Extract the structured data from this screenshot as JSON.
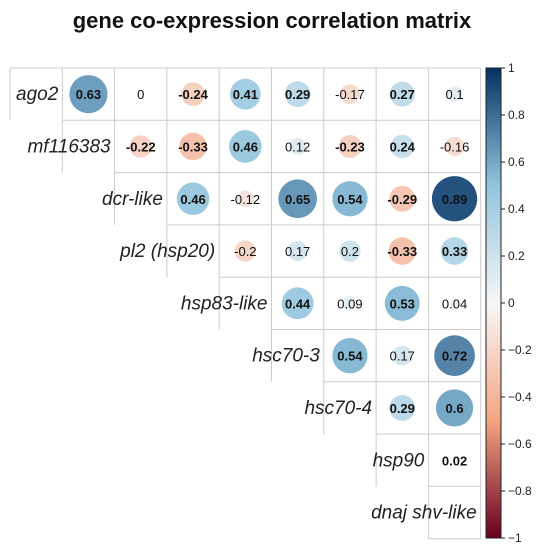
{
  "chart_data": {
    "type": "heatmap",
    "title": "gene co-expression correlation matrix",
    "genes": [
      "ago2",
      "mf116383",
      "dcr-like",
      "pl2 (hsp20)",
      "hsp83-like",
      "hsc70-3",
      "hsc70-4",
      "hsp90",
      "dnaj shv-like"
    ],
    "matrix": [
      [
        null,
        0.63,
        0,
        -0.24,
        0.41,
        0.29,
        -0.17,
        0.27,
        0.1
      ],
      [
        null,
        null,
        -0.22,
        -0.33,
        0.46,
        0.12,
        -0.23,
        0.24,
        -0.16
      ],
      [
        null,
        null,
        null,
        0.46,
        -0.12,
        0.65,
        0.54,
        -0.29,
        0.89
      ],
      [
        null,
        null,
        null,
        null,
        -0.2,
        0.17,
        0.2,
        -0.33,
        0.33
      ],
      [
        null,
        null,
        null,
        null,
        null,
        0.44,
        0.09,
        0.53,
        0.04
      ],
      [
        null,
        null,
        null,
        null,
        null,
        null,
        0.54,
        0.17,
        0.72
      ],
      [
        null,
        null,
        null,
        null,
        null,
        null,
        null,
        0.29,
        0.6
      ],
      [
        null,
        null,
        null,
        null,
        null,
        null,
        null,
        null,
        0.02
      ],
      [
        null,
        null,
        null,
        null,
        null,
        null,
        null,
        null,
        null
      ]
    ],
    "labels": [
      [
        null,
        "0.63",
        "0",
        "-0.24",
        "0.41",
        "0.29",
        "-0.17",
        "0.27",
        "0.1"
      ],
      [
        null,
        null,
        "-0.22",
        "-0.33",
        "0.46",
        "0.12",
        "-0.23",
        "0.24",
        "-0.16"
      ],
      [
        null,
        null,
        null,
        "0.46",
        "-0.12",
        "0.65",
        "0.54",
        "-0.29",
        "0.89"
      ],
      [
        null,
        null,
        null,
        null,
        "-0.2",
        "0.17",
        "0.2",
        "-0.33",
        "0.33"
      ],
      [
        null,
        null,
        null,
        null,
        null,
        "0.44",
        "0.09",
        "0.53",
        "0.04"
      ],
      [
        null,
        null,
        null,
        null,
        null,
        null,
        "0.54",
        "0.17",
        "0.72"
      ],
      [
        null,
        null,
        null,
        null,
        null,
        null,
        null,
        "0.29",
        "0.6"
      ],
      [
        null,
        null,
        null,
        null,
        null,
        null,
        null,
        null,
        "0.02"
      ],
      [
        null,
        null,
        null,
        null,
        null,
        null,
        null,
        null,
        null
      ]
    ],
    "significant": [
      [
        null,
        true,
        false,
        true,
        true,
        true,
        false,
        true,
        false
      ],
      [
        null,
        null,
        true,
        true,
        true,
        false,
        true,
        true,
        false
      ],
      [
        null,
        null,
        null,
        true,
        false,
        true,
        true,
        true,
        true
      ],
      [
        null,
        null,
        null,
        null,
        false,
        false,
        false,
        true,
        true
      ],
      [
        null,
        null,
        null,
        null,
        null,
        true,
        false,
        true,
        false
      ],
      [
        null,
        null,
        null,
        null,
        null,
        null,
        true,
        false,
        true
      ],
      [
        null,
        null,
        null,
        null,
        null,
        null,
        null,
        true,
        true
      ],
      [
        null,
        null,
        null,
        null,
        null,
        null,
        null,
        null,
        true
      ],
      [
        null,
        null,
        null,
        null,
        null,
        null,
        null,
        null,
        null
      ]
    ],
    "colorbar": {
      "range": [
        -1,
        1
      ],
      "ticks": [
        "1",
        "0.8",
        "0.6",
        "0.4",
        "0.2",
        "0",
        "−0.2",
        "−0.4",
        "−0.6",
        "−0.8",
        "−1"
      ],
      "colors": {
        "negative_end": "#67001f",
        "negative_mid": "#f4a582",
        "zero": "#f7f7f7",
        "positive_mid": "#92c5de",
        "positive_end": "#053061"
      }
    }
  }
}
